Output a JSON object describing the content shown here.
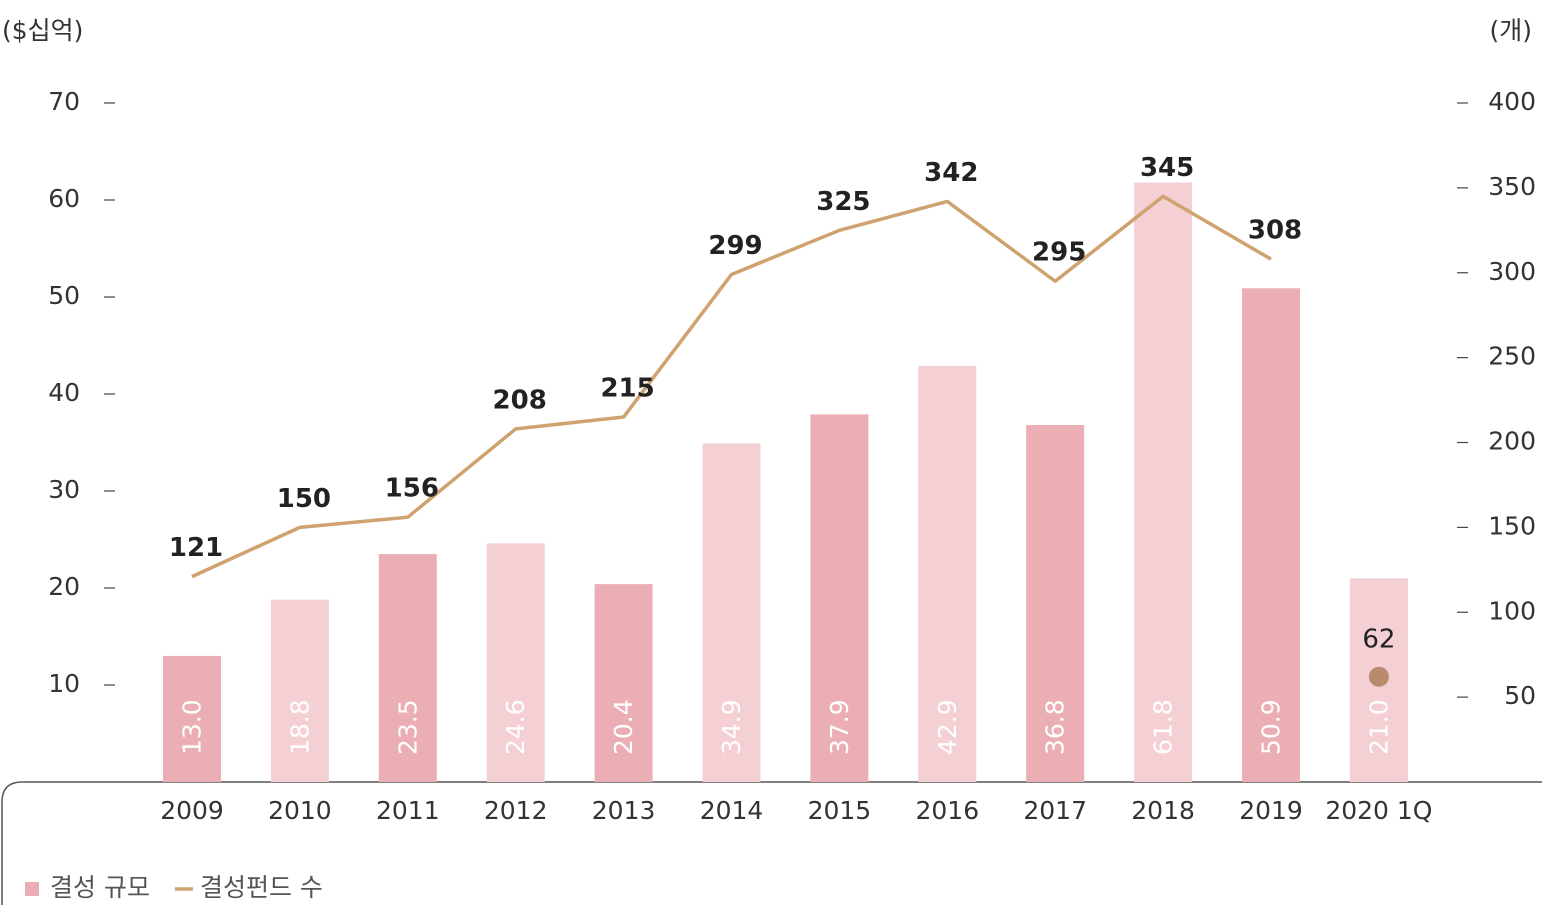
{
  "chart_data": {
    "type": "bar-line",
    "y_label": "($십억)",
    "y2_label": "(개)",
    "categories": [
      "2009",
      "2010",
      "2011",
      "2012",
      "2013",
      "2014",
      "2015",
      "2016",
      "2017",
      "2018",
      "2019",
      "2020 1Q"
    ],
    "series": [
      {
        "name": "결성 규모",
        "type": "bar",
        "colors": [
          "#ebaeb5",
          "#f4d0d5"
        ],
        "values": [
          13,
          18.8,
          23.5,
          24.6,
          20.4,
          34.9,
          37.9,
          42.9,
          36.8,
          61.8,
          50.9,
          21
        ],
        "value_labels": [
          "13.0",
          "18.8",
          "23.5",
          "24.6",
          "20.4",
          "34.9",
          "37.9",
          "42.9",
          "36.8",
          "61.8",
          "50.9",
          "21.0"
        ]
      },
      {
        "name": "결성펀드 수",
        "type": "line",
        "color": "#cfa26f",
        "axis": "y2",
        "values": [
          121,
          150,
          156,
          208,
          215,
          299,
          325,
          342,
          295,
          345,
          308,
          null
        ]
      },
      {
        "type": "dot",
        "color": "#b98a6e",
        "axis": "y2",
        "values": [
          null,
          null,
          null,
          null,
          null,
          null,
          null,
          null,
          null,
          null,
          null,
          62
        ]
      }
    ],
    "ylim": [
      0,
      70
    ],
    "yticks": [
      10,
      20,
      30,
      40,
      50,
      60,
      70
    ],
    "y2lim": [
      0,
      400
    ],
    "y2ticks": [
      50,
      100,
      150,
      200,
      250,
      300,
      350,
      400
    ],
    "legend": "bottom-left"
  }
}
